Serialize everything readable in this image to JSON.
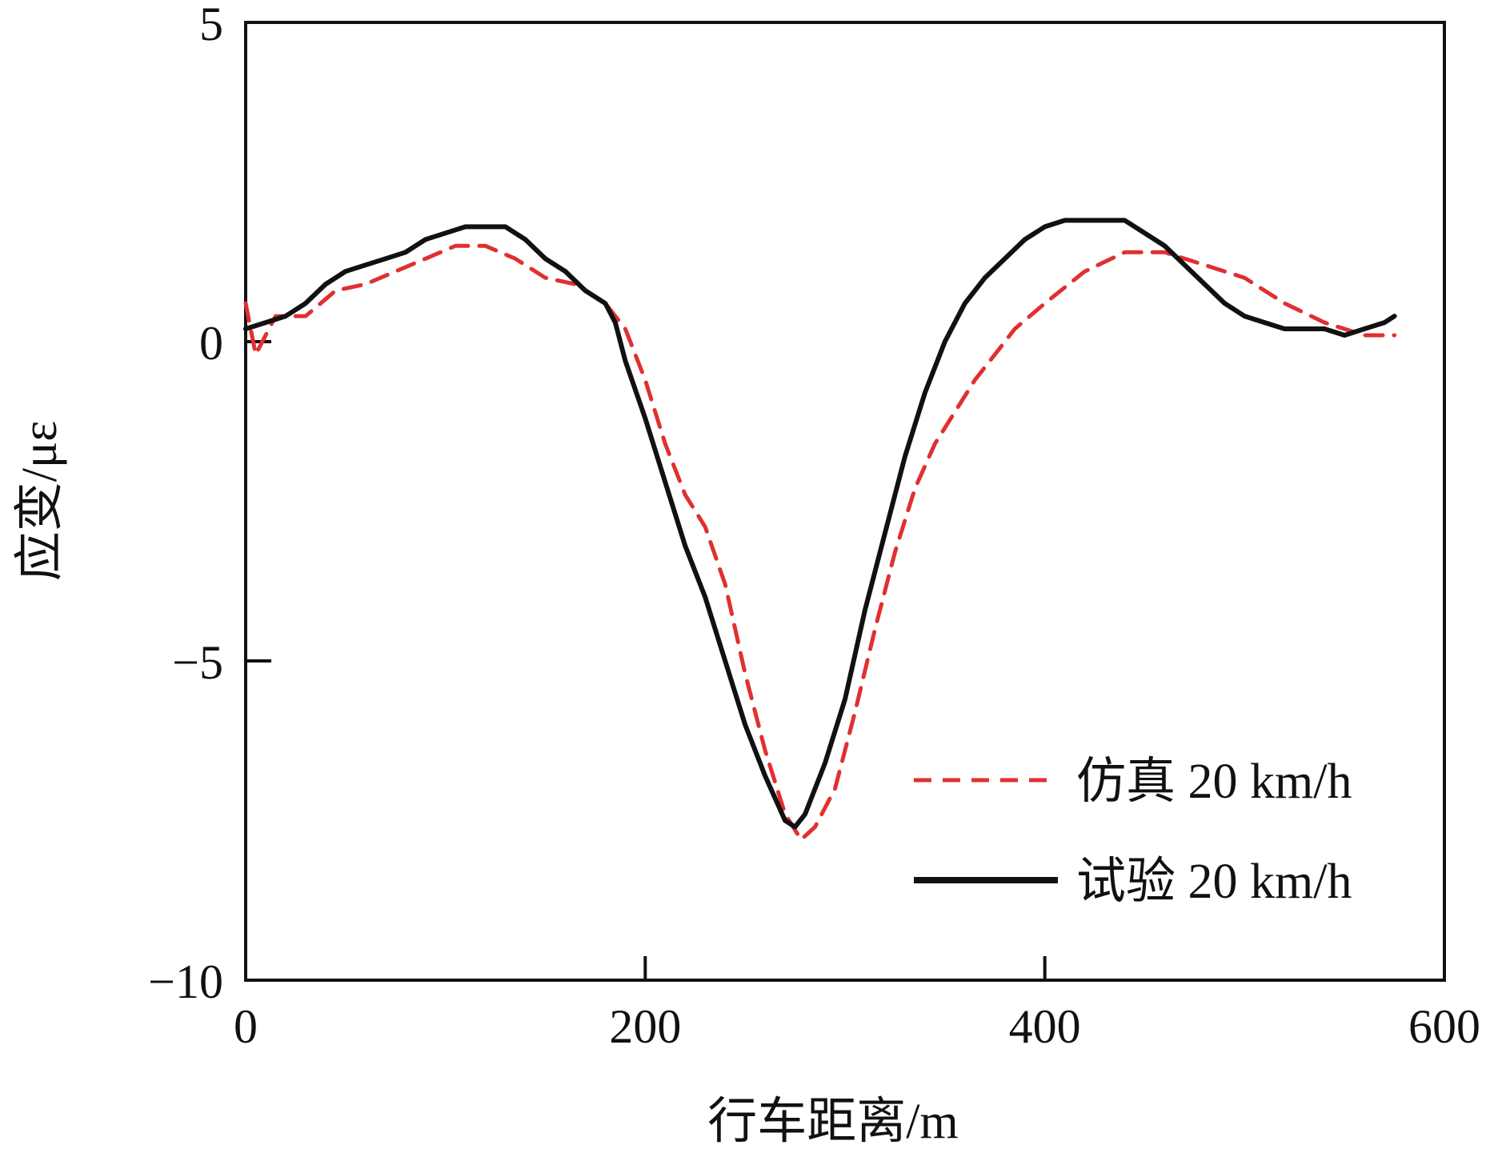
{
  "chart_data": {
    "type": "line",
    "title": "",
    "xlabel": "行车距离/m",
    "ylabel": "应变/με",
    "xlim": [
      0,
      600
    ],
    "ylim": [
      -10,
      5
    ],
    "xticks": [
      0,
      200,
      400,
      600
    ],
    "yticks": [
      -10,
      -5,
      0,
      5
    ],
    "xtick_labels": [
      "0",
      "200",
      "400",
      "600"
    ],
    "ytick_labels": [
      "−10",
      "−5",
      "0",
      "5"
    ],
    "grid": false,
    "legend_position": "bottom-right",
    "series": [
      {
        "name": "仿真 20 km/h",
        "color": "#e03030",
        "style": "dashed",
        "x": [
          0,
          5,
          15,
          30,
          45,
          60,
          75,
          90,
          105,
          120,
          135,
          150,
          165,
          180,
          190,
          200,
          210,
          220,
          230,
          240,
          250,
          260,
          270,
          278,
          285,
          295,
          305,
          315,
          325,
          335,
          345,
          355,
          365,
          375,
          385,
          400,
          420,
          440,
          460,
          480,
          500,
          520,
          540,
          560,
          575
        ],
        "y": [
          0.6,
          -0.2,
          0.4,
          0.4,
          0.8,
          0.9,
          1.1,
          1.3,
          1.5,
          1.5,
          1.3,
          1.0,
          0.9,
          0.6,
          0.2,
          -0.6,
          -1.6,
          -2.4,
          -2.9,
          -3.8,
          -5.2,
          -6.4,
          -7.4,
          -7.8,
          -7.6,
          -7.0,
          -5.8,
          -4.5,
          -3.3,
          -2.3,
          -1.6,
          -1.1,
          -0.6,
          -0.2,
          0.2,
          0.6,
          1.1,
          1.4,
          1.4,
          1.2,
          1.0,
          0.6,
          0.3,
          0.1,
          0.1
        ]
      },
      {
        "name": "试验 20 km/h",
        "color": "#111111",
        "style": "solid",
        "x": [
          0,
          10,
          20,
          30,
          40,
          50,
          60,
          70,
          80,
          90,
          100,
          110,
          120,
          130,
          140,
          150,
          160,
          170,
          180,
          185,
          190,
          200,
          210,
          220,
          230,
          240,
          250,
          260,
          270,
          275,
          280,
          290,
          300,
          310,
          320,
          330,
          340,
          350,
          360,
          370,
          380,
          390,
          400,
          410,
          420,
          430,
          440,
          450,
          460,
          470,
          480,
          490,
          500,
          510,
          520,
          530,
          540,
          550,
          560,
          570,
          575
        ],
        "y": [
          0.2,
          0.3,
          0.4,
          0.6,
          0.9,
          1.1,
          1.2,
          1.3,
          1.4,
          1.6,
          1.7,
          1.8,
          1.8,
          1.8,
          1.6,
          1.3,
          1.1,
          0.8,
          0.6,
          0.3,
          -0.3,
          -1.2,
          -2.2,
          -3.2,
          -4.0,
          -5.0,
          -6.0,
          -6.8,
          -7.5,
          -7.6,
          -7.4,
          -6.6,
          -5.6,
          -4.2,
          -3.0,
          -1.8,
          -0.8,
          0.0,
          0.6,
          1.0,
          1.3,
          1.6,
          1.8,
          1.9,
          1.9,
          1.9,
          1.9,
          1.7,
          1.5,
          1.2,
          0.9,
          0.6,
          0.4,
          0.3,
          0.2,
          0.2,
          0.2,
          0.1,
          0.2,
          0.3,
          0.4
        ]
      }
    ]
  }
}
